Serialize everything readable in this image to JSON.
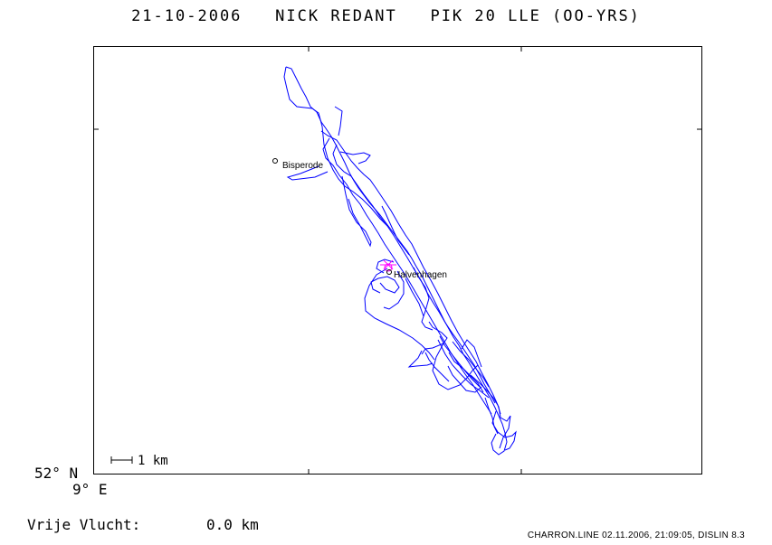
{
  "header": {
    "date": "21-10-2006",
    "pilot": "NICK REDANT",
    "glider": "PIK 20 LLE (OO-YRS)"
  },
  "map": {
    "track_color": "#0000ff",
    "highlight_color": "#ff00ff",
    "places": [
      {
        "name": "Bisperode"
      },
      {
        "name": "Halvenhagen"
      }
    ],
    "scale_label": "1 km",
    "lat_label": "52° N",
    "lon_label": "9° E"
  },
  "stats": {
    "free_flight_label": "Vrije Vlucht:",
    "free_flight_value": "0.0 km"
  },
  "footer": {
    "credits": "CHARRON.LINE 02.11.2006, 21:09:05, DISLIN 8.3"
  }
}
